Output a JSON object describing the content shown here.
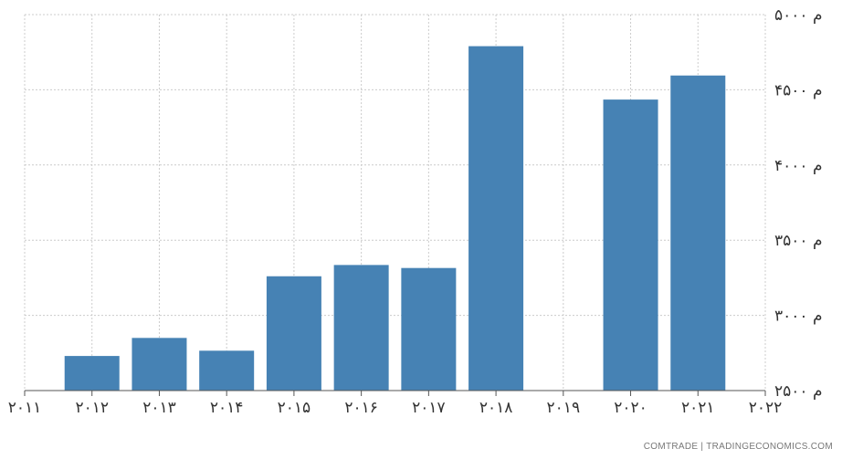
{
  "chart_data": {
    "type": "bar",
    "title": "",
    "xlabel": "",
    "ylabel": "",
    "x": [
      2012,
      2013,
      2014,
      2015,
      2016,
      2017,
      2018,
      2020,
      2021
    ],
    "values": [
      2730,
      2850,
      2765,
      3260,
      3335,
      3315,
      4790,
      4435,
      4595
    ],
    "xlim": [
      2011,
      2022
    ],
    "ylim": [
      2500,
      5000
    ],
    "x_ticks": [
      "۲۰۱۱",
      "۲۰۱۲",
      "۲۰۱۳",
      "۲۰۱۴",
      "۲۰۱۵",
      "۲۰۱۶",
      "۲۰۱۷",
      "۲۰۱۸",
      "۲۰۱۹",
      "۲۰۲۰",
      "۲۰۲۱",
      "۲۰۲۲"
    ],
    "y_ticks": [
      {
        "value": 2500,
        "label": "۲۵۰۰ م"
      },
      {
        "value": 3000,
        "label": "۳۰۰۰ م"
      },
      {
        "value": 3500,
        "label": "۳۵۰۰ م"
      },
      {
        "value": 4000,
        "label": "۴۰۰۰ م"
      },
      {
        "value": 4500,
        "label": "۴۵۰۰ م"
      },
      {
        "value": 5000,
        "label": "۵۰۰۰ م"
      }
    ],
    "grid": true,
    "bar_color": "#4682b4",
    "grid_color": "#cccccc"
  },
  "credit": "COMTRADE | TRADINGECONOMICS.COM"
}
